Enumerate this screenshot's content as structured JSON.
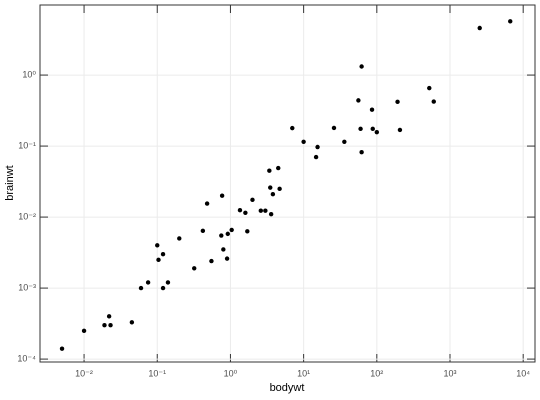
{
  "chart_data": {
    "type": "scatter",
    "x_label": "bodywt",
    "y_label": "brainwt",
    "log_x": true,
    "log_y": true,
    "grid": true,
    "color": "#000000",
    "xlim": [
      0.0025,
      14500
    ],
    "ylim": [
      9.1e-05,
      9.7
    ],
    "xticks": [
      {
        "value": 0.01,
        "label": "10⁻²"
      },
      {
        "value": 0.1,
        "label": "10⁻¹"
      },
      {
        "value": 1,
        "label": "10⁰"
      },
      {
        "value": 10,
        "label": "10¹"
      },
      {
        "value": 100,
        "label": "10²"
      },
      {
        "value": 1000,
        "label": "10³"
      },
      {
        "value": 10000,
        "label": "10⁴"
      }
    ],
    "yticks": [
      {
        "value": 0.0001,
        "label": "10⁻⁴"
      },
      {
        "value": 0.001,
        "label": "10⁻³"
      },
      {
        "value": 0.01,
        "label": "10⁻²"
      },
      {
        "value": 0.1,
        "label": "10⁻¹"
      },
      {
        "value": 1,
        "label": "10⁰"
      }
    ],
    "x": [
      0.005,
      0.01,
      0.019,
      0.022,
      0.023,
      0.045,
      0.06,
      0.075,
      0.1,
      0.104,
      0.12,
      0.12,
      0.14,
      0.2,
      0.32,
      0.42,
      0.48,
      0.55,
      0.75,
      0.77,
      0.8,
      0.9,
      0.92,
      1.04,
      1.35,
      1.6,
      1.7,
      2.0,
      2.6,
      3.0,
      3.4,
      3.5,
      3.6,
      3.8,
      4.5,
      4.7,
      7,
      10,
      14.8,
      15.5,
      26,
      36,
      56,
      60,
      62,
      62,
      86,
      88,
      100,
      192,
      207,
      521,
      600,
      2547,
      6654
    ],
    "values": [
      0.00014,
      0.00025,
      0.0003,
      0.0004,
      0.0003,
      0.00033,
      0.001,
      0.0012,
      0.004,
      0.0025,
      0.003,
      0.001,
      0.0012,
      0.005,
      0.0019,
      0.0064,
      0.0155,
      0.0024,
      0.0055,
      0.02,
      0.0035,
      0.0026,
      0.0058,
      0.0066,
      0.0125,
      0.0115,
      0.0063,
      0.0175,
      0.0123,
      0.0123,
      0.045,
      0.026,
      0.011,
      0.021,
      0.049,
      0.025,
      0.179,
      0.115,
      0.07,
      0.097,
      0.18,
      0.115,
      0.44,
      0.175,
      1.32,
      0.082,
      0.325,
      0.175,
      0.157,
      0.42,
      0.169,
      0.655,
      0.423,
      4.6,
      5.71
    ]
  }
}
